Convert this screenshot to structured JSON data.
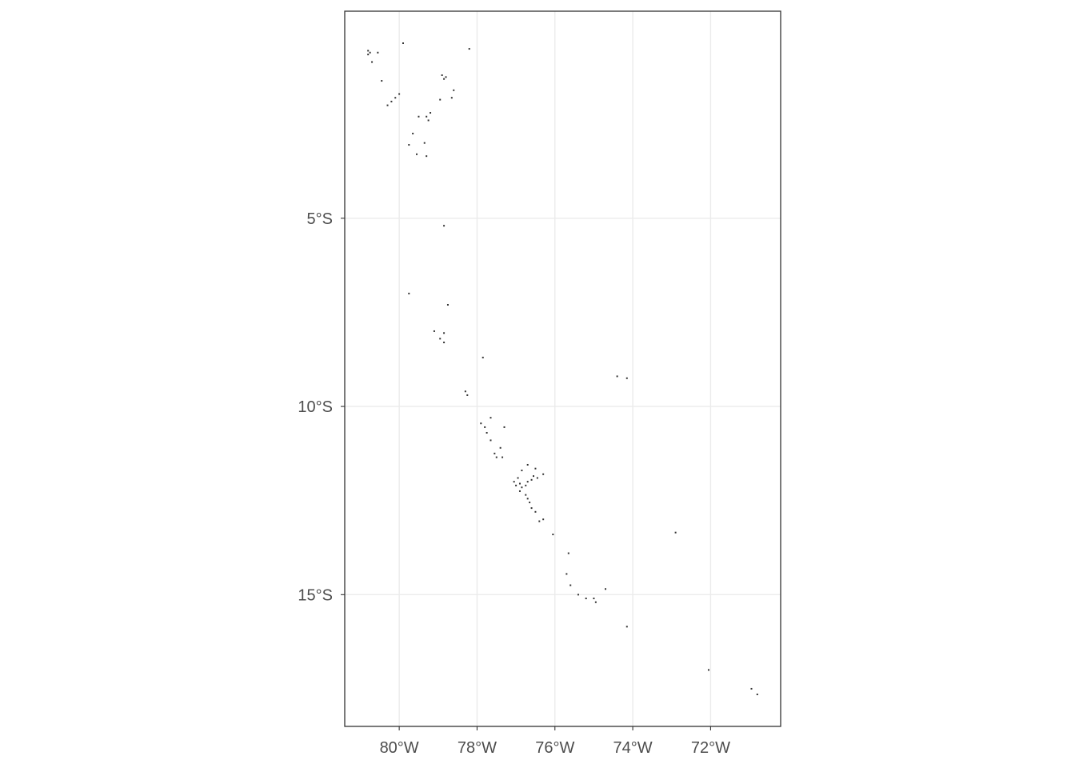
{
  "chart_data": {
    "type": "scatter",
    "title": "",
    "xlabel": "",
    "ylabel": "",
    "xlim": [
      -81.4,
      -70.2
    ],
    "ylim": [
      -18.5,
      0.5
    ],
    "x_ticks": [
      {
        "value": -80,
        "label": "80°W"
      },
      {
        "value": -78,
        "label": "78°W"
      },
      {
        "value": -76,
        "label": "76°W"
      },
      {
        "value": -74,
        "label": "74°W"
      },
      {
        "value": -72,
        "label": "72°W"
      }
    ],
    "y_ticks": [
      {
        "value": -5,
        "label": "5°S"
      },
      {
        "value": -10,
        "label": "10°S"
      },
      {
        "value": -15,
        "label": "15°S"
      }
    ],
    "grid": true,
    "point_color": "#333333",
    "grid_color": "#ebebeb",
    "series": [
      {
        "points": [
          [
            -80.8,
            -0.55
          ],
          [
            -80.75,
            -0.6
          ],
          [
            -80.8,
            -0.65
          ],
          [
            -80.55,
            -0.6
          ],
          [
            -80.7,
            -0.85
          ],
          [
            -79.9,
            -0.35
          ],
          [
            -78.2,
            -0.5
          ],
          [
            -80.45,
            -1.35
          ],
          [
            -78.9,
            -1.2
          ],
          [
            -78.8,
            -1.25
          ],
          [
            -78.85,
            -1.3
          ],
          [
            -78.6,
            -1.6
          ],
          [
            -78.65,
            -1.8
          ],
          [
            -80.0,
            -1.7
          ],
          [
            -80.1,
            -1.8
          ],
          [
            -80.2,
            -1.9
          ],
          [
            -80.3,
            -2.0
          ],
          [
            -78.95,
            -1.85
          ],
          [
            -79.5,
            -2.3
          ],
          [
            -79.3,
            -2.3
          ],
          [
            -79.2,
            -2.2
          ],
          [
            -79.25,
            -2.4
          ],
          [
            -79.65,
            -2.75
          ],
          [
            -79.75,
            -3.05
          ],
          [
            -79.35,
            -3.0
          ],
          [
            -79.55,
            -3.3
          ],
          [
            -79.3,
            -3.35
          ],
          [
            -78.85,
            -5.2
          ],
          [
            -79.75,
            -7.0
          ],
          [
            -78.75,
            -7.3
          ],
          [
            -79.1,
            -8.0
          ],
          [
            -78.95,
            -8.2
          ],
          [
            -78.85,
            -8.3
          ],
          [
            -78.85,
            -8.05
          ],
          [
            -77.85,
            -8.7
          ],
          [
            -78.3,
            -9.6
          ],
          [
            -78.25,
            -9.7
          ],
          [
            -74.4,
            -9.2
          ],
          [
            -74.15,
            -9.25
          ],
          [
            -77.9,
            -10.45
          ],
          [
            -77.8,
            -10.55
          ],
          [
            -77.75,
            -10.7
          ],
          [
            -77.65,
            -10.3
          ],
          [
            -77.3,
            -10.55
          ],
          [
            -77.65,
            -10.9
          ],
          [
            -77.55,
            -11.25
          ],
          [
            -77.4,
            -11.1
          ],
          [
            -77.35,
            -11.35
          ],
          [
            -77.5,
            -11.35
          ],
          [
            -76.7,
            -11.55
          ],
          [
            -76.5,
            -11.65
          ],
          [
            -76.3,
            -11.8
          ],
          [
            -76.55,
            -11.85
          ],
          [
            -76.85,
            -11.7
          ],
          [
            -76.95,
            -11.9
          ],
          [
            -77.05,
            -12.0
          ],
          [
            -77.0,
            -12.1
          ],
          [
            -76.9,
            -12.05
          ],
          [
            -76.85,
            -12.15
          ],
          [
            -76.75,
            -12.1
          ],
          [
            -76.7,
            -12.0
          ],
          [
            -76.6,
            -11.95
          ],
          [
            -76.45,
            -11.9
          ],
          [
            -76.9,
            -12.25
          ],
          [
            -76.75,
            -12.35
          ],
          [
            -76.7,
            -12.45
          ],
          [
            -76.65,
            -12.55
          ],
          [
            -76.6,
            -12.7
          ],
          [
            -76.5,
            -12.8
          ],
          [
            -76.3,
            -13.0
          ],
          [
            -76.4,
            -13.05
          ],
          [
            -76.05,
            -13.4
          ],
          [
            -72.9,
            -13.35
          ],
          [
            -75.65,
            -13.9
          ],
          [
            -75.7,
            -14.45
          ],
          [
            -75.6,
            -14.75
          ],
          [
            -75.4,
            -15.0
          ],
          [
            -75.2,
            -15.1
          ],
          [
            -75.0,
            -15.1
          ],
          [
            -74.95,
            -15.2
          ],
          [
            -74.7,
            -14.85
          ],
          [
            -74.15,
            -15.85
          ],
          [
            -72.05,
            -17.0
          ],
          [
            -70.95,
            -17.5
          ],
          [
            -70.8,
            -17.65
          ]
        ]
      }
    ]
  }
}
